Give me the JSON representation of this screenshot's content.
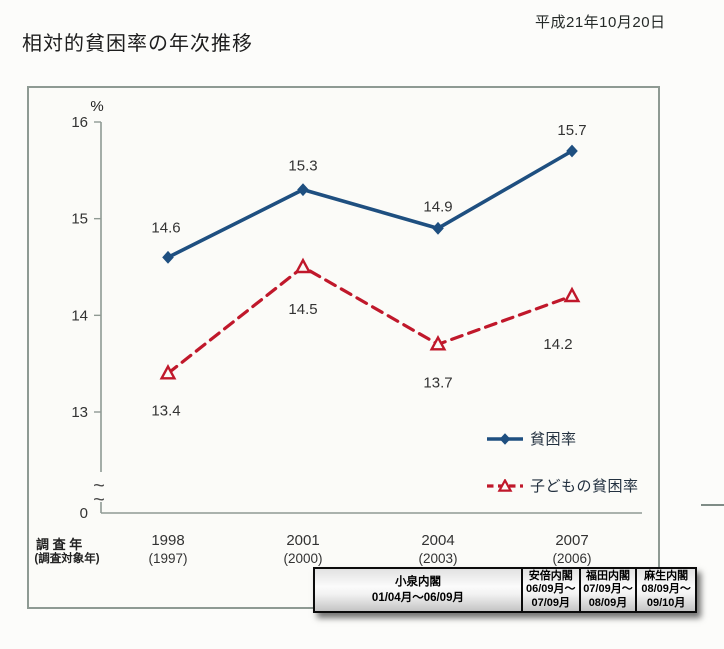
{
  "page": {
    "date_label": "平成21年10月20日",
    "title": "相対的貧困率の年次推移"
  },
  "chart_data": {
    "type": "line",
    "title": "相対的貧困率の年次推移",
    "unit_label": "%",
    "x_axis_title": "調 査 年",
    "x_axis_subtitle": "(調査対象年)",
    "categories": [
      {
        "survey_year": "1998",
        "target_year": "(1997)"
      },
      {
        "survey_year": "2001",
        "target_year": "(2000)"
      },
      {
        "survey_year": "2004",
        "target_year": "(2003)"
      },
      {
        "survey_year": "2007",
        "target_year": "(2006)"
      }
    ],
    "series": [
      {
        "name": "貧困率",
        "values": [
          14.6,
          15.3,
          14.9,
          15.7
        ],
        "color": "#1e4f80",
        "line_style": "solid",
        "marker": "diamond-filled"
      },
      {
        "name": "子どもの貧困率",
        "values": [
          13.4,
          14.5,
          13.7,
          14.2
        ],
        "color": "#c0182b",
        "line_style": "dashed",
        "marker": "triangle-open"
      }
    ],
    "y_ticks": [
      16,
      15,
      14,
      13
    ],
    "y_origin_label": "0",
    "axis_break": true,
    "y_range_visible": [
      13,
      16
    ],
    "grid": false,
    "legend_position": "inside-bottom-right"
  },
  "cabinet_table": {
    "cells": [
      {
        "lines": [
          "小泉内閣",
          "01/04月〜06/09月"
        ]
      },
      {
        "lines": [
          "安倍内閣",
          "06/09月〜",
          "07/09月"
        ]
      },
      {
        "lines": [
          "福田内閣",
          "07/09月〜",
          "08/09月"
        ]
      },
      {
        "lines": [
          "麻生内閣",
          "08/09月〜",
          "09/10月"
        ]
      }
    ]
  },
  "colors": {
    "poverty_line": "#1e4f80",
    "child_poverty_line": "#c0182b",
    "axis": "#8f9a94",
    "frame_border": "#8e9a93",
    "label_text": "#333333"
  }
}
